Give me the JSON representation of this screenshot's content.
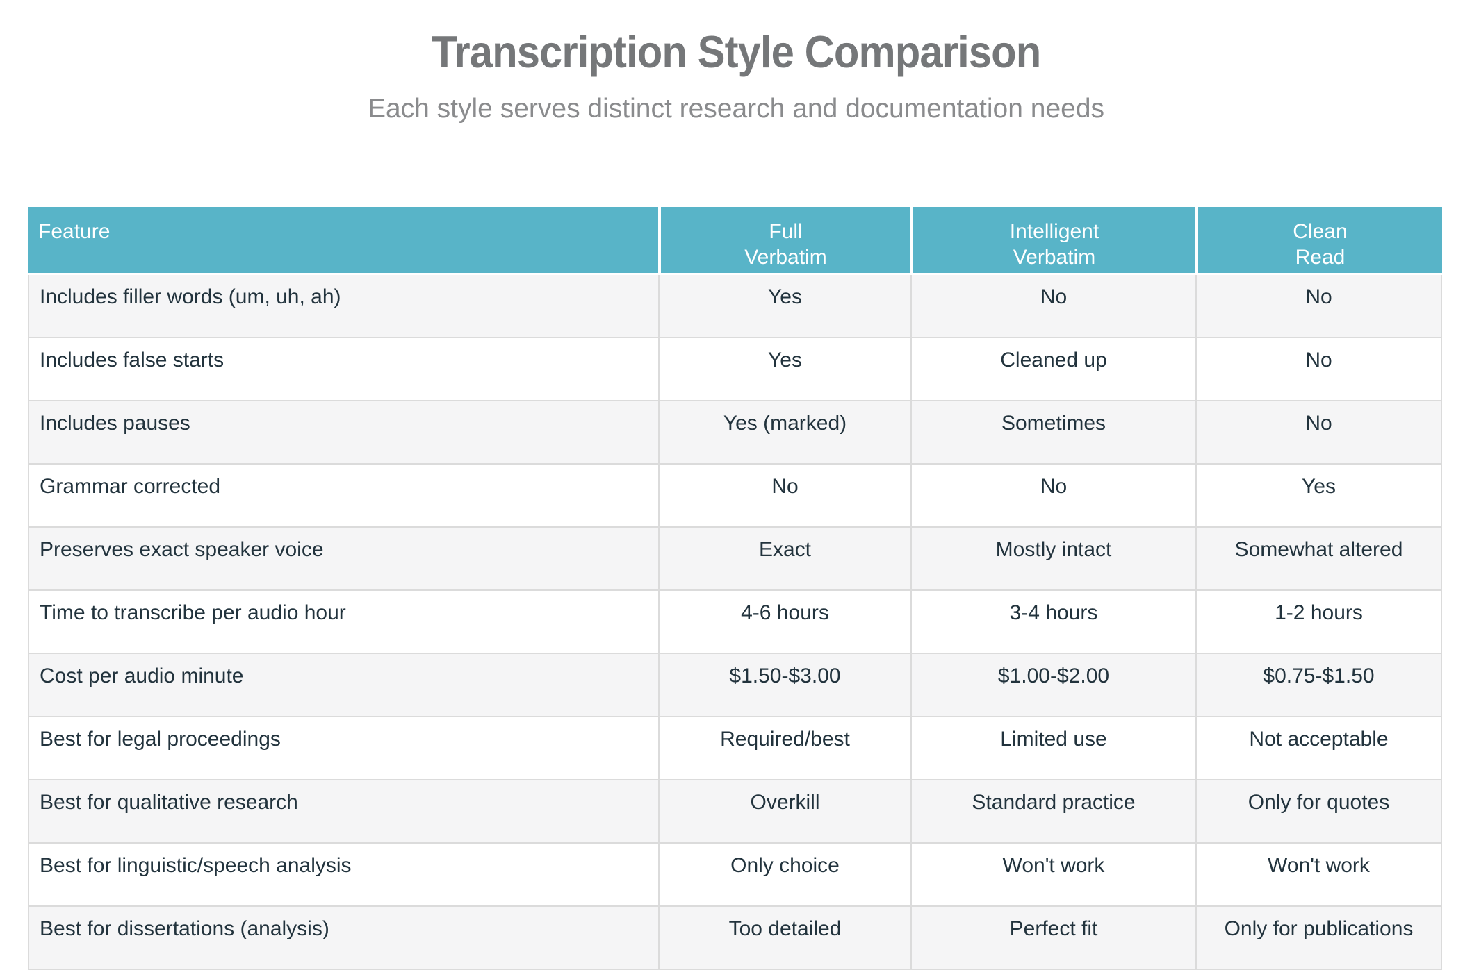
{
  "chart_data": {
    "type": "table",
    "title": "Transcription Style Comparison",
    "subtitle": "Each style serves distinct research and documentation needs",
    "columns": [
      "Feature",
      "Full\nVerbatim",
      "Intelligent\nVerbatim",
      "Clean\nRead"
    ],
    "rows": [
      {
        "feature": "Includes filler words (um, uh, ah)",
        "values": [
          "Yes",
          "No",
          "No"
        ]
      },
      {
        "feature": "Includes false starts",
        "values": [
          "Yes",
          "Cleaned up",
          "No"
        ]
      },
      {
        "feature": "Includes pauses",
        "values": [
          "Yes (marked)",
          "Sometimes",
          "No"
        ]
      },
      {
        "feature": "Grammar corrected",
        "values": [
          "No",
          "No",
          "Yes"
        ]
      },
      {
        "feature": "Preserves exact speaker voice",
        "values": [
          "Exact",
          "Mostly intact",
          "Somewhat altered"
        ]
      },
      {
        "feature": "Time to transcribe per audio hour",
        "values": [
          "4-6 hours",
          "3-4 hours",
          "1-2 hours"
        ]
      },
      {
        "feature": "Cost per audio minute",
        "values": [
          "$1.50-$3.00",
          "$1.00-$2.00",
          "$0.75-$1.50"
        ]
      },
      {
        "feature": "Best for legal proceedings",
        "values": [
          "Required/best",
          "Limited use",
          "Not acceptable"
        ]
      },
      {
        "feature": "Best for qualitative research",
        "values": [
          "Overkill",
          "Standard practice",
          "Only for quotes"
        ]
      },
      {
        "feature": "Best for linguistic/speech analysis",
        "values": [
          "Only choice",
          "Won't work",
          "Won't work"
        ]
      },
      {
        "feature": "Best for dissertations (analysis)",
        "values": [
          "Too detailed",
          "Perfect fit",
          "Only for publications"
        ]
      }
    ],
    "layout": {
      "header_align": "center",
      "feature_column_align": "left",
      "value_columns_align": "center",
      "alternating_rows": true,
      "first_body_row_shaded": true
    }
  },
  "colors": {
    "header_bg": "#58b4c8",
    "header_text": "#ffffff",
    "body_text": "#22333d",
    "title_text": "#757779",
    "subtitle_text": "#8a8b8d",
    "row_shaded_bg": "#f5f5f6",
    "row_plain_bg": "#ffffff",
    "grid_border": "#dbdbdb"
  }
}
